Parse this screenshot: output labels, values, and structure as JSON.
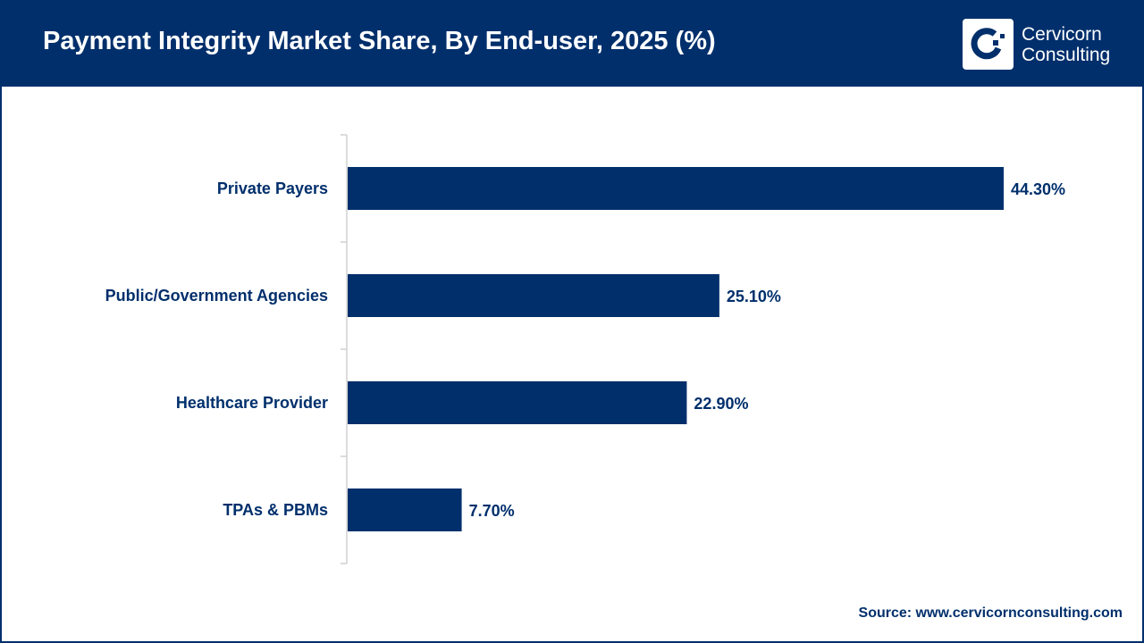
{
  "header": {
    "title": "Payment Integrity Market Share, By End-user, 2025 (%)"
  },
  "logo": {
    "line1": "Cervicorn",
    "line2": "Consulting"
  },
  "source": "Source: www.cervicornconsulting.com",
  "colors": {
    "brand": "#002f6c",
    "bar": "#002f6c",
    "axis": "#d0d0d0"
  },
  "chart_data": {
    "type": "bar",
    "orientation": "horizontal",
    "title": "Payment Integrity Market Share, By End-user, 2025 (%)",
    "categories": [
      "Private Payers",
      "Public/Government Agencies",
      "Healthcare Provider",
      "TPAs & PBMs"
    ],
    "values": [
      44.3,
      25.1,
      22.9,
      7.7
    ],
    "data_labels": [
      "44.30%",
      "25.10%",
      "22.90%",
      "7.70%"
    ],
    "xlim": [
      0,
      44.3
    ],
    "grid": false,
    "legend": "none"
  }
}
